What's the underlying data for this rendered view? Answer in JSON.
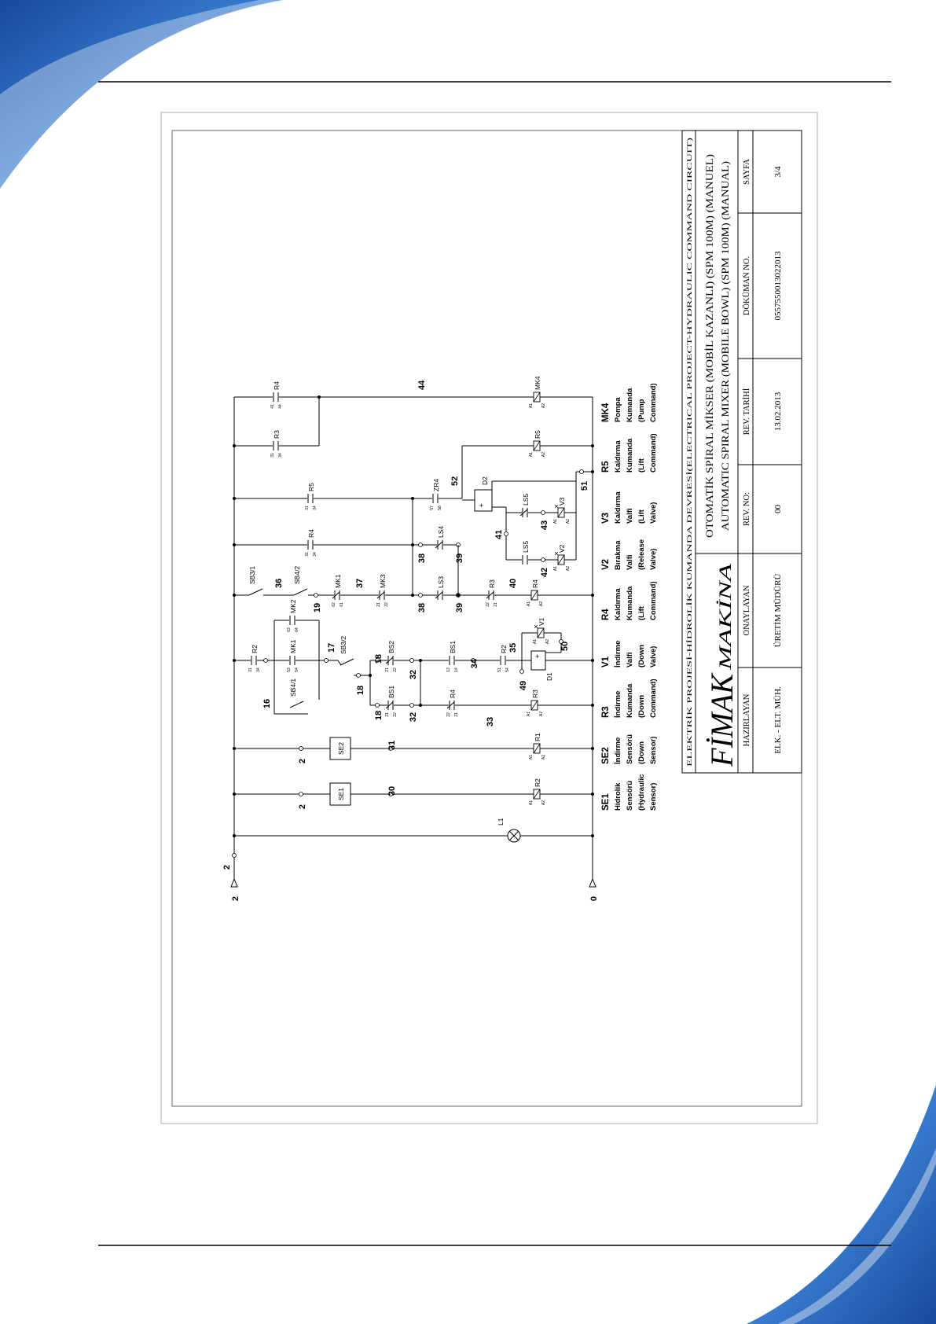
{
  "colors": {
    "swoosh_dark": "#1a56b0",
    "swoosh_light": "#9fc3ee",
    "line": "#000000",
    "frame": "#c8c8c8"
  },
  "title_block": {
    "strip": "ELEKTRİK PROJESİ-HİDROLİK KUMANDA DEVRESİ(ELECTRICAL PROJECT-HYDRAULIC COMMAND CIRCUIT)",
    "title_tr": "OTOMATİK SPİRAL MİKSER (MOBİL KAZANLI) (SPM 100M) (MANUEL)",
    "title_en": "AUTOMATIC SPIRAL MIXER (MOBILE BOWL) (SPM 100M) (MANUAL)",
    "logo_main": "FİMAK",
    "logo_sub": "MAKİNA",
    "fields": [
      {
        "label": "HAZIRLAYAN",
        "value": "ELK. - ELT. MÜH."
      },
      {
        "label": "ONAYLAYAN",
        "value": "ÜRETİM MÜDÜRÜ"
      },
      {
        "label": "REV. NO:",
        "value": "00"
      },
      {
        "label": "REV. TARİHİ",
        "value": "13.02.2013"
      },
      {
        "label": "DÖKÜMAN NO.",
        "value": "0557550013022013"
      },
      {
        "label": "SAYFA",
        "value": "3/4"
      }
    ]
  },
  "schematic": {
    "coil_terminals": [
      "A1",
      "A2"
    ],
    "labels": {
      "rail_top": "2",
      "rail_bottom": "0",
      "rail_node": "2",
      "L1": "L1",
      "se1_node": "2",
      "se1_box": "SE1",
      "w30": "30",
      "se1_coil": "R2",
      "se2_node": "2",
      "se2_box": "SE2",
      "w31": "31",
      "se2_coil": "R1",
      "r2_contact": "R2",
      "w16": "16",
      "mk2": "MK2",
      "mk1a": "MK1",
      "sb41": "SB4/1",
      "w17": "17",
      "sb32": "SB3/2",
      "w18a": "18",
      "w18b": "18",
      "w18c": "18",
      "bs2": "BS2",
      "bs1nc": "BS1",
      "w32a": "32",
      "w32b": "32",
      "r4nc": "R4",
      "w33": "33",
      "r3_coil": "R3",
      "bs1no": "BS1",
      "w34": "34",
      "r2no": "R2",
      "w35": "35",
      "d1": "D1",
      "v1": "V1",
      "w49": "49",
      "w50": "50",
      "sb31": "SB3/1",
      "w36": "36",
      "sb42": "SB4/2",
      "w19": "19",
      "mk1b": "MK1",
      "w37": "37",
      "mk3": "MK3",
      "w38a": "38",
      "ls3": "LS3",
      "w39a": "39",
      "r3nc": "R3",
      "w40": "40",
      "r4_coil": "R4",
      "r4no": "R4",
      "w38b": "38",
      "ls4": "LS4",
      "w39b": "39",
      "r5no": "R5",
      "zr4": "ZR4",
      "w52": "52",
      "d2": "D2",
      "w41": "41",
      "ls5a": "LS5",
      "w43": "43",
      "v3": "V3",
      "ls5b": "LS5",
      "w42": "42",
      "v2": "V2",
      "w51": "51",
      "r5_coil": "R5",
      "r3no": "R3",
      "r4no_top": "R4",
      "w44": "44",
      "mk4_coil": "MK4"
    },
    "pins": {
      "r2_contact": [
        "31",
        "34"
      ],
      "mk2": [
        "63",
        "64"
      ],
      "mk1a": [
        "53",
        "54"
      ],
      "bs2": [
        "21",
        "22"
      ],
      "bs1nc": [
        "21",
        "22"
      ],
      "r4nc": [
        "22",
        "21"
      ],
      "bs1no": [
        "13",
        "14"
      ],
      "r2no": [
        "51",
        "54"
      ],
      "mk1b": [
        "62",
        "61"
      ],
      "mk3": [
        "21",
        "22"
      ],
      "r3nc": [
        "22",
        "21"
      ],
      "r4no": [
        "31",
        "34"
      ],
      "r5no": [
        "31",
        "34"
      ],
      "zr4": [
        "57",
        "58"
      ],
      "r3no": [
        "31",
        "34"
      ],
      "r4no_top": [
        "41",
        "44"
      ]
    },
    "branches": [
      {
        "code": "SE1",
        "lines": [
          "Hidrolik",
          "Sensörü",
          "(Hydraulic",
          "Sensor)"
        ]
      },
      {
        "code": "SE2",
        "lines": [
          "İndirme",
          "Sensörü",
          "(Down",
          "Sensor)"
        ]
      },
      {
        "code": "R3",
        "lines": [
          "İndirme",
          "Kumanda",
          "(Down",
          "Command)"
        ]
      },
      {
        "code": "V1",
        "lines": [
          "İndirme",
          "Valfi",
          "(Down",
          "Valve)"
        ]
      },
      {
        "code": "R4",
        "lines": [
          "Kaldırma",
          "Kumanda",
          "(Lift",
          "Command)"
        ]
      },
      {
        "code": "V2",
        "lines": [
          "Bırakma",
          "Valfi",
          "(Release",
          "Valve)"
        ]
      },
      {
        "code": "V3",
        "lines": [
          "Kaldırma",
          "Valfi",
          "(Lift",
          "Valve)"
        ]
      },
      {
        "code": "R5",
        "lines": [
          "Kaldırma",
          "Kumanda",
          "(Lift",
          "Command)"
        ]
      },
      {
        "code": "MK4",
        "lines": [
          "Pompa",
          "Kumanda",
          "(Pump",
          "Command)"
        ]
      }
    ]
  }
}
